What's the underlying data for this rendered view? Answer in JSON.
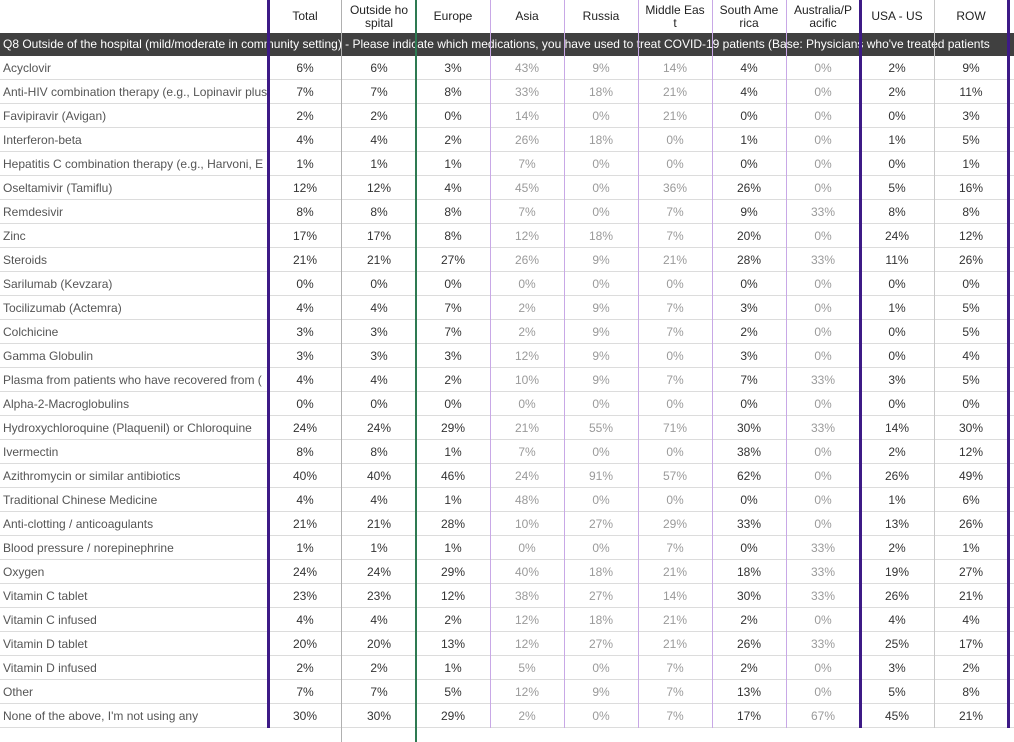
{
  "columns": [
    "Total",
    "Outside hospital",
    "Europe",
    "Asia",
    "Russia",
    "Middle East",
    "South America",
    "Australia/Pacific",
    "USA - US",
    "ROW"
  ],
  "banner": "Q8 Outside of the hospital (mild/moderate in community setting) - Please indicate which medications, you have used to treat COVID-19 patients (Base: Physicians who've treated patients",
  "rows": [
    {
      "label": "Acyclovir",
      "cells": [
        "6%",
        "6%",
        "3%",
        "43%",
        "9%",
        "14%",
        "4%",
        "0%",
        "2%",
        "9%"
      ]
    },
    {
      "label": "Anti-HIV combination therapy (e.g., Lopinavir plus",
      "cells": [
        "7%",
        "7%",
        "8%",
        "33%",
        "18%",
        "21%",
        "4%",
        "0%",
        "2%",
        "11%"
      ]
    },
    {
      "label": "Favipiravir (Avigan)",
      "cells": [
        "2%",
        "2%",
        "0%",
        "14%",
        "0%",
        "21%",
        "0%",
        "0%",
        "0%",
        "3%"
      ]
    },
    {
      "label": "Interferon-beta",
      "cells": [
        "4%",
        "4%",
        "2%",
        "26%",
        "18%",
        "0%",
        "1%",
        "0%",
        "1%",
        "5%"
      ]
    },
    {
      "label": "Hepatitis C combination therapy (e.g., Harvoni, E",
      "cells": [
        "1%",
        "1%",
        "1%",
        "7%",
        "0%",
        "0%",
        "0%",
        "0%",
        "0%",
        "1%"
      ]
    },
    {
      "label": "Oseltamivir (Tamiflu)",
      "cells": [
        "12%",
        "12%",
        "4%",
        "45%",
        "0%",
        "36%",
        "26%",
        "0%",
        "5%",
        "16%"
      ]
    },
    {
      "label": "Remdesivir",
      "cells": [
        "8%",
        "8%",
        "8%",
        "7%",
        "0%",
        "7%",
        "9%",
        "33%",
        "8%",
        "8%"
      ]
    },
    {
      "label": "Zinc",
      "cells": [
        "17%",
        "17%",
        "8%",
        "12%",
        "18%",
        "7%",
        "20%",
        "0%",
        "24%",
        "12%"
      ]
    },
    {
      "label": "Steroids",
      "cells": [
        "21%",
        "21%",
        "27%",
        "26%",
        "9%",
        "21%",
        "28%",
        "33%",
        "11%",
        "26%"
      ]
    },
    {
      "label": "Sarilumab (Kevzara)",
      "cells": [
        "0%",
        "0%",
        "0%",
        "0%",
        "0%",
        "0%",
        "0%",
        "0%",
        "0%",
        "0%"
      ]
    },
    {
      "label": "Tocilizumab (Actemra)",
      "cells": [
        "4%",
        "4%",
        "7%",
        "2%",
        "9%",
        "7%",
        "3%",
        "0%",
        "1%",
        "5%"
      ]
    },
    {
      "label": "Colchicine",
      "cells": [
        "3%",
        "3%",
        "7%",
        "2%",
        "9%",
        "7%",
        "2%",
        "0%",
        "0%",
        "5%"
      ]
    },
    {
      "label": "Gamma Globulin",
      "cells": [
        "3%",
        "3%",
        "3%",
        "12%",
        "9%",
        "0%",
        "3%",
        "0%",
        "0%",
        "4%"
      ]
    },
    {
      "label": "Plasma from patients who have recovered from (",
      "cells": [
        "4%",
        "4%",
        "2%",
        "10%",
        "9%",
        "7%",
        "7%",
        "33%",
        "3%",
        "5%"
      ]
    },
    {
      "label": "Alpha-2-Macroglobulins",
      "cells": [
        "0%",
        "0%",
        "0%",
        "0%",
        "0%",
        "0%",
        "0%",
        "0%",
        "0%",
        "0%"
      ]
    },
    {
      "label": "Hydroxychloroquine (Plaquenil) or Chloroquine",
      "cells": [
        "24%",
        "24%",
        "29%",
        "21%",
        "55%",
        "71%",
        "30%",
        "33%",
        "14%",
        "30%"
      ]
    },
    {
      "label": "Ivermectin",
      "cells": [
        "8%",
        "8%",
        "1%",
        "7%",
        "0%",
        "0%",
        "38%",
        "0%",
        "2%",
        "12%"
      ]
    },
    {
      "label": "Azithromycin or similar antibiotics",
      "cells": [
        "40%",
        "40%",
        "46%",
        "24%",
        "91%",
        "57%",
        "62%",
        "0%",
        "26%",
        "49%"
      ]
    },
    {
      "label": "Traditional Chinese Medicine",
      "cells": [
        "4%",
        "4%",
        "1%",
        "48%",
        "0%",
        "0%",
        "0%",
        "0%",
        "1%",
        "6%"
      ]
    },
    {
      "label": "Anti-clotting / anticoagulants",
      "cells": [
        "21%",
        "21%",
        "28%",
        "10%",
        "27%",
        "29%",
        "33%",
        "0%",
        "13%",
        "26%"
      ]
    },
    {
      "label": "Blood pressure / norepinephrine",
      "cells": [
        "1%",
        "1%",
        "1%",
        "0%",
        "0%",
        "7%",
        "0%",
        "33%",
        "2%",
        "1%"
      ]
    },
    {
      "label": "Oxygen",
      "cells": [
        "24%",
        "24%",
        "29%",
        "40%",
        "18%",
        "21%",
        "18%",
        "33%",
        "19%",
        "27%"
      ]
    },
    {
      "label": "Vitamin C tablet",
      "cells": [
        "23%",
        "23%",
        "12%",
        "38%",
        "27%",
        "14%",
        "30%",
        "33%",
        "26%",
        "21%"
      ]
    },
    {
      "label": "Vitamin C infused",
      "cells": [
        "4%",
        "4%",
        "2%",
        "12%",
        "18%",
        "21%",
        "2%",
        "0%",
        "4%",
        "4%"
      ]
    },
    {
      "label": "Vitamin D tablet",
      "cells": [
        "20%",
        "20%",
        "13%",
        "12%",
        "27%",
        "21%",
        "26%",
        "33%",
        "25%",
        "17%"
      ]
    },
    {
      "label": "Vitamin D infused",
      "cells": [
        "2%",
        "2%",
        "1%",
        "5%",
        "0%",
        "7%",
        "2%",
        "0%",
        "3%",
        "2%"
      ]
    },
    {
      "label": "Other",
      "cells": [
        "7%",
        "7%",
        "5%",
        "12%",
        "9%",
        "7%",
        "13%",
        "0%",
        "5%",
        "8%"
      ]
    },
    {
      "label": "None of the above, I'm not using any",
      "cells": [
        "30%",
        "30%",
        "29%",
        "2%",
        "0%",
        "7%",
        "17%",
        "67%",
        "45%",
        "21%"
      ]
    }
  ]
}
